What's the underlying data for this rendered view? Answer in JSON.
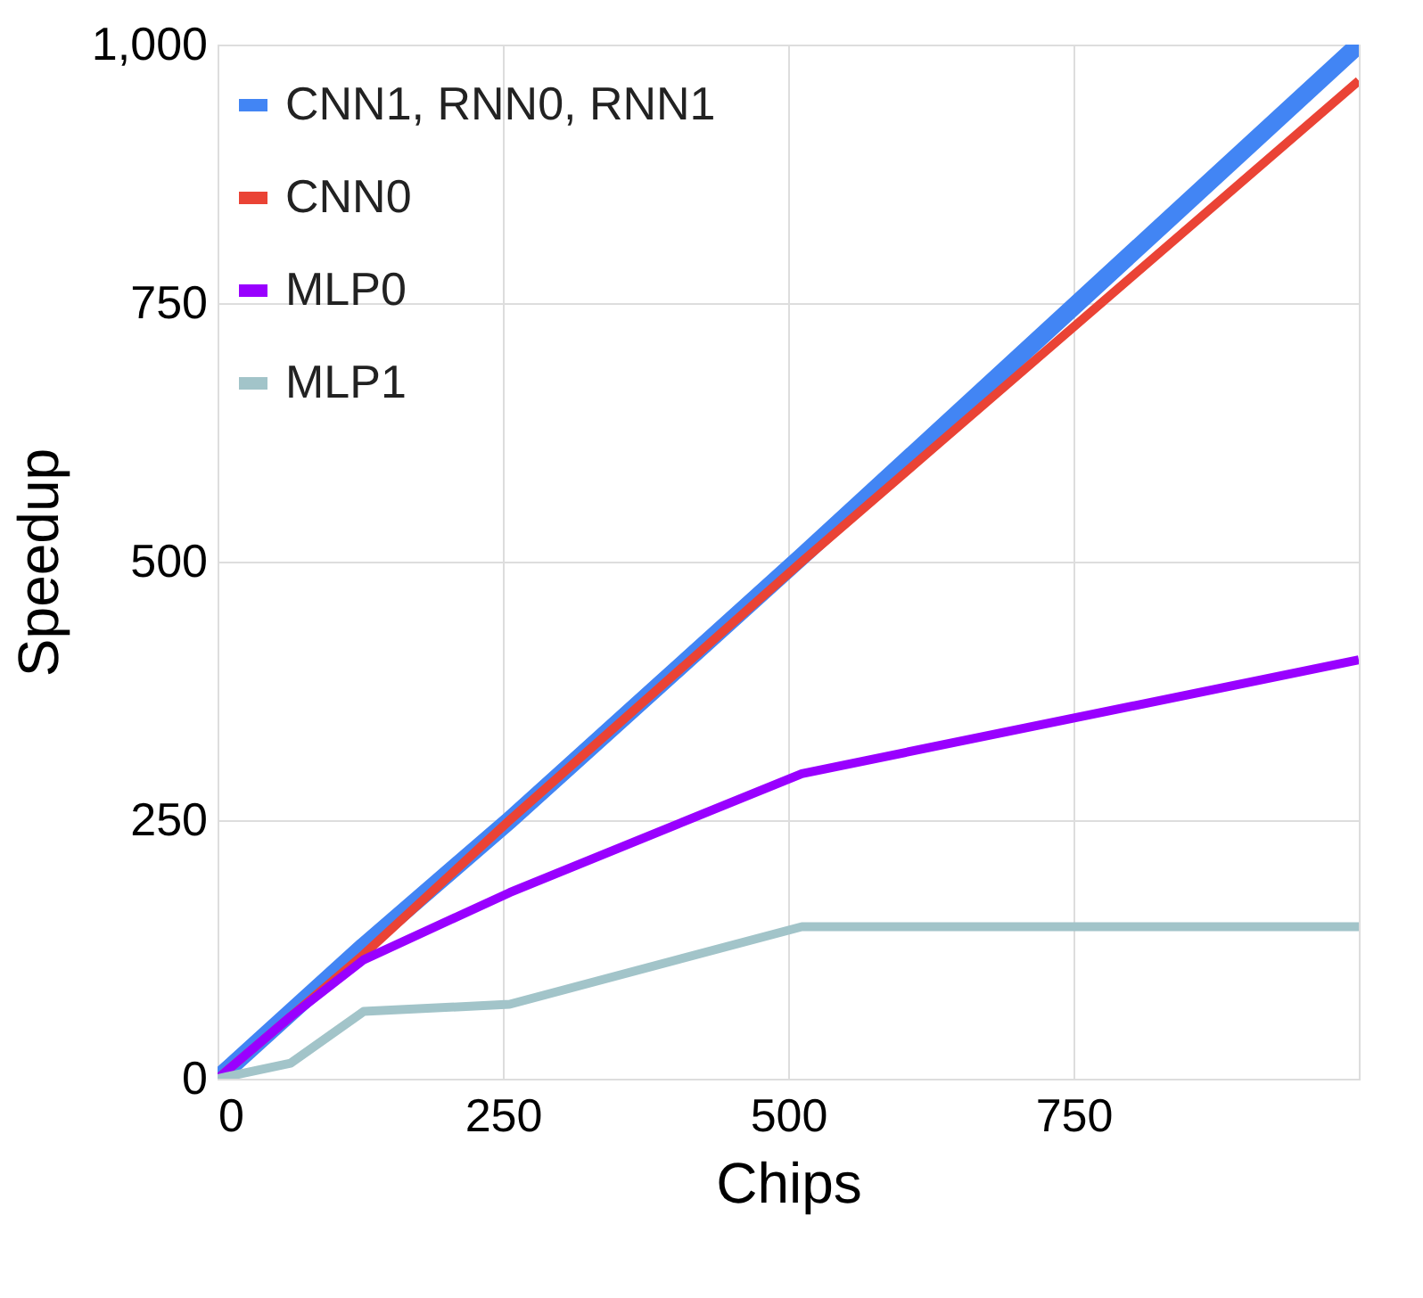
{
  "chart_data": {
    "type": "line",
    "xlabel": "Chips",
    "ylabel": "Speedup",
    "xlim": [
      0,
      1000
    ],
    "xticks": [
      0,
      250,
      500,
      750
    ],
    "ylim": [
      0,
      1000
    ],
    "yticks": [
      0,
      250,
      500,
      750,
      {
        "value": 1000,
        "label": "1,000"
      }
    ],
    "grid": true,
    "legend": "top left",
    "marker": "none",
    "line_style": "solid",
    "series": [
      {
        "name": "CNN1, RNN0, RNN1",
        "color": "#4285f4",
        "x": [
          0,
          128,
          256,
          512,
          1000
        ],
        "values": [
          0,
          128,
          250,
          505,
          1000
        ]
      },
      {
        "name": "CNN0",
        "color": "#ea4335",
        "x": [
          0,
          128,
          256,
          512,
          1000
        ],
        "values": [
          0,
          120,
          250,
          500,
          965
        ]
      },
      {
        "name": "MLP0",
        "color": "#9900ff",
        "x": [
          0,
          64,
          128,
          256,
          512,
          1000
        ],
        "values": [
          0,
          60,
          115,
          180,
          295,
          405
        ]
      },
      {
        "name": "MLP1",
        "color": "#a2c4c9",
        "x": [
          0,
          64,
          128,
          256,
          512,
          1000
        ],
        "values": [
          0,
          15,
          65,
          72,
          147,
          147
        ]
      }
    ]
  }
}
